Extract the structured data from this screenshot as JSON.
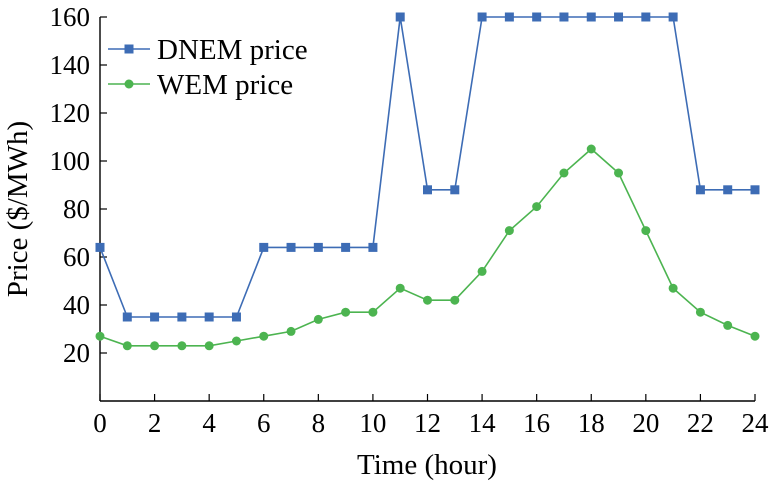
{
  "chart_data": {
    "type": "line",
    "xlabel": "Time (hour)",
    "ylabel": "Price ($/MWh)",
    "xlim": [
      0,
      24
    ],
    "ylim": [
      0,
      160
    ],
    "xticks": [
      0,
      2,
      4,
      6,
      8,
      10,
      12,
      14,
      16,
      18,
      20,
      22,
      24
    ],
    "yticks": [
      20,
      40,
      60,
      80,
      100,
      120,
      140,
      160
    ],
    "grid": false,
    "legend": "top-left",
    "x": [
      0,
      1,
      2,
      3,
      4,
      5,
      6,
      7,
      8,
      9,
      10,
      11,
      12,
      13,
      14,
      15,
      16,
      17,
      18,
      19,
      20,
      21,
      22,
      23,
      24
    ],
    "series": [
      {
        "name": "DNEM price",
        "color": "#3d6cb5",
        "marker": "square",
        "values": [
          64,
          35,
          35,
          35,
          35,
          35,
          64,
          64,
          64,
          64,
          64,
          160,
          88,
          88,
          160,
          160,
          160,
          160,
          160,
          160,
          160,
          160,
          88,
          88,
          88
        ]
      },
      {
        "name": "WEM price",
        "color": "#4cb450",
        "marker": "circle",
        "values": [
          27,
          23,
          23,
          23,
          23,
          25,
          27,
          29,
          34,
          37,
          37,
          47,
          42,
          42,
          54,
          71,
          81,
          95,
          105,
          95,
          71,
          47,
          37,
          31.5,
          27
        ]
      }
    ]
  }
}
